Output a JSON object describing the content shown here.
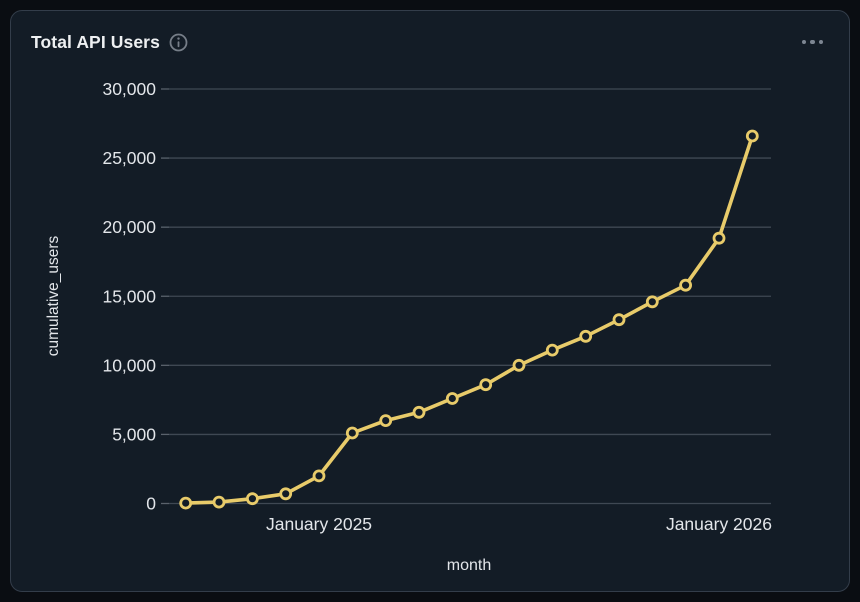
{
  "card": {
    "title": "Total API Users",
    "info_icon": "info-circle",
    "menu_icon": "ellipsis"
  },
  "colors": {
    "page_bg": "#0a0d12",
    "card_bg": "#131c26",
    "card_border": "#333d4a",
    "grid": "#3f4853",
    "tick": "#5a626c",
    "axis_text": "#e3e6ea",
    "title_text": "#eef0f2",
    "muted": "#7d8692",
    "accent_line": "#e8cb6a"
  },
  "chart_data": {
    "type": "line",
    "title": "Total API Users",
    "xlabel": "month",
    "ylabel": "cumulative_users",
    "ylim": [
      0,
      30000
    ],
    "grid": true,
    "legend": false,
    "marker": "open-circle",
    "x": [
      "Sep 2024",
      "Oct 2024",
      "Nov 2024",
      "Dec 2024",
      "Jan 2025",
      "Feb 2025",
      "Mar 2025",
      "Apr 2025",
      "May 2025",
      "Jun 2025",
      "Jul 2025",
      "Aug 2025",
      "Sep 2025",
      "Oct 2025",
      "Nov 2025",
      "Dec 2025",
      "Jan 2026",
      "Feb 2026"
    ],
    "series": [
      {
        "name": "cumulative_users",
        "values": [
          30,
          100,
          350,
          700,
          2000,
          5100,
          6000,
          6600,
          7600,
          8600,
          10000,
          11100,
          12100,
          13300,
          14600,
          15800,
          19200,
          26600
        ]
      }
    ],
    "y_ticks": {
      "values": [
        0,
        5000,
        10000,
        15000,
        20000,
        25000,
        30000
      ],
      "labels": [
        "0",
        "5,000",
        "10,000",
        "15,000",
        "20,000",
        "25,000",
        "30,000"
      ]
    },
    "x_ticks": [
      {
        "label": "January 2025",
        "index": 4
      },
      {
        "label": "January 2026",
        "index": 16
      }
    ]
  }
}
